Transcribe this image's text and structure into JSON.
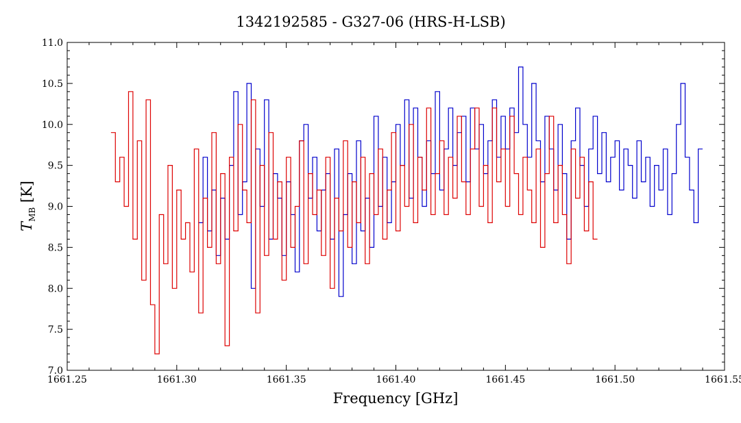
{
  "chart_data": {
    "type": "line",
    "title": "1342192585 - G327-06 (HRS-H-LSB)",
    "xlabel": "Frequency [GHz]",
    "ylabel_main": "T",
    "ylabel_sub": "MB",
    "ylabel_unit": "[K]",
    "xlim": [
      1661.25,
      1661.55
    ],
    "ylim": [
      7.0,
      11.0
    ],
    "xticks": [
      1661.25,
      1661.3,
      1661.35,
      1661.4,
      1661.45,
      1661.5,
      1661.55
    ],
    "xtick_labels": [
      "1661.25",
      "1661.30",
      "1661.35",
      "1661.40",
      "1661.45",
      "1661.50",
      "1661.55"
    ],
    "yticks": [
      7.0,
      7.5,
      8.0,
      8.5,
      9.0,
      9.5,
      10.0,
      10.5,
      11.0
    ],
    "ytick_labels": [
      "7.0",
      "7.5",
      "8.0",
      "8.5",
      "9.0",
      "9.5",
      "10.0",
      "10.5",
      "11.0"
    ],
    "grid": false,
    "series": [
      {
        "color": "#0000cc",
        "x": [
          1661.31,
          1661.312,
          1661.314,
          1661.316,
          1661.318,
          1661.32,
          1661.322,
          1661.324,
          1661.326,
          1661.328,
          1661.33,
          1661.332,
          1661.334,
          1661.336,
          1661.338,
          1661.34,
          1661.342,
          1661.344,
          1661.346,
          1661.348,
          1661.35,
          1661.352,
          1661.354,
          1661.356,
          1661.358,
          1661.36,
          1661.362,
          1661.364,
          1661.366,
          1661.368,
          1661.37,
          1661.372,
          1661.374,
          1661.376,
          1661.378,
          1661.38,
          1661.382,
          1661.384,
          1661.386,
          1661.388,
          1661.39,
          1661.392,
          1661.394,
          1661.396,
          1661.398,
          1661.4,
          1661.402,
          1661.404,
          1661.406,
          1661.408,
          1661.41,
          1661.412,
          1661.414,
          1661.416,
          1661.418,
          1661.42,
          1661.422,
          1661.424,
          1661.426,
          1661.428,
          1661.43,
          1661.432,
          1661.434,
          1661.436,
          1661.438,
          1661.44,
          1661.442,
          1661.444,
          1661.446,
          1661.448,
          1661.45,
          1661.452,
          1661.454,
          1661.456,
          1661.458,
          1661.46,
          1661.462,
          1661.464,
          1661.466,
          1661.468,
          1661.47,
          1661.472,
          1661.474,
          1661.476,
          1661.478,
          1661.48,
          1661.482,
          1661.484,
          1661.486,
          1661.488,
          1661.49,
          1661.492,
          1661.494,
          1661.496,
          1661.498,
          1661.5,
          1661.502,
          1661.504,
          1661.506,
          1661.508,
          1661.51,
          1661.512,
          1661.514,
          1661.516,
          1661.518,
          1661.52,
          1661.522,
          1661.524,
          1661.526,
          1661.528,
          1661.53,
          1661.532,
          1661.534,
          1661.536,
          1661.538
        ],
        "values": [
          8.8,
          9.6,
          8.7,
          9.2,
          8.4,
          9.1,
          8.6,
          9.5,
          10.4,
          8.9,
          9.3,
          10.5,
          8.0,
          9.7,
          9.0,
          10.3,
          8.6,
          9.4,
          9.1,
          8.4,
          9.3,
          8.9,
          8.2,
          9.8,
          10.0,
          9.1,
          9.6,
          8.7,
          9.2,
          9.4,
          8.6,
          9.7,
          7.9,
          8.9,
          9.4,
          8.3,
          9.8,
          8.7,
          9.1,
          8.5,
          10.1,
          9.0,
          9.6,
          8.8,
          9.3,
          10.0,
          9.5,
          10.3,
          9.1,
          10.2,
          9.6,
          9.0,
          9.8,
          9.4,
          10.4,
          9.2,
          9.7,
          10.2,
          9.5,
          9.9,
          10.1,
          9.3,
          10.2,
          9.7,
          10.0,
          9.4,
          9.8,
          10.3,
          9.6,
          10.1,
          9.7,
          10.2,
          9.9,
          10.7,
          10.0,
          9.6,
          10.5,
          9.8,
          9.3,
          10.1,
          9.7,
          9.2,
          10.0,
          9.4,
          8.6,
          9.8,
          10.2,
          9.5,
          9.0,
          9.7,
          10.1,
          9.4,
          9.9,
          9.3,
          9.6,
          9.8,
          9.2,
          9.7,
          9.5,
          9.1,
          9.8,
          9.3,
          9.6,
          9.0,
          9.5,
          9.2,
          9.7,
          8.9,
          9.4,
          10.0,
          10.5,
          9.6,
          9.2,
          8.8,
          9.7
        ]
      },
      {
        "color": "#dd0000",
        "x": [
          1661.27,
          1661.272,
          1661.274,
          1661.276,
          1661.278,
          1661.28,
          1661.282,
          1661.284,
          1661.286,
          1661.288,
          1661.29,
          1661.292,
          1661.294,
          1661.296,
          1661.298,
          1661.3,
          1661.302,
          1661.304,
          1661.306,
          1661.308,
          1661.31,
          1661.312,
          1661.314,
          1661.316,
          1661.318,
          1661.32,
          1661.322,
          1661.324,
          1661.326,
          1661.328,
          1661.33,
          1661.332,
          1661.334,
          1661.336,
          1661.338,
          1661.34,
          1661.342,
          1661.344,
          1661.346,
          1661.348,
          1661.35,
          1661.352,
          1661.354,
          1661.356,
          1661.358,
          1661.36,
          1661.362,
          1661.364,
          1661.366,
          1661.368,
          1661.37,
          1661.372,
          1661.374,
          1661.376,
          1661.378,
          1661.38,
          1661.382,
          1661.384,
          1661.386,
          1661.388,
          1661.39,
          1661.392,
          1661.394,
          1661.396,
          1661.398,
          1661.4,
          1661.402,
          1661.404,
          1661.406,
          1661.408,
          1661.41,
          1661.412,
          1661.414,
          1661.416,
          1661.418,
          1661.42,
          1661.422,
          1661.424,
          1661.426,
          1661.428,
          1661.43,
          1661.432,
          1661.434,
          1661.436,
          1661.438,
          1661.44,
          1661.442,
          1661.444,
          1661.446,
          1661.448,
          1661.45,
          1661.452,
          1661.454,
          1661.456,
          1661.458,
          1661.46,
          1661.462,
          1661.464,
          1661.466,
          1661.468,
          1661.47,
          1661.472,
          1661.474,
          1661.476,
          1661.478,
          1661.48,
          1661.482,
          1661.484,
          1661.486,
          1661.488,
          1661.49
        ],
        "values": [
          9.9,
          9.3,
          9.6,
          9.0,
          10.4,
          8.6,
          9.8,
          8.1,
          10.3,
          7.8,
          7.2,
          8.9,
          8.3,
          9.5,
          8.0,
          9.2,
          8.6,
          8.8,
          8.2,
          9.7,
          7.7,
          9.1,
          8.5,
          9.9,
          8.3,
          9.4,
          7.3,
          9.6,
          8.7,
          10.0,
          9.2,
          8.8,
          10.3,
          7.7,
          9.5,
          8.4,
          9.9,
          8.6,
          9.3,
          8.1,
          9.6,
          8.5,
          9.0,
          9.8,
          8.3,
          9.4,
          8.9,
          9.2,
          8.4,
          9.6,
          8.0,
          9.1,
          8.7,
          9.8,
          8.5,
          9.3,
          8.8,
          9.6,
          8.3,
          9.4,
          8.9,
          9.7,
          8.6,
          9.2,
          9.9,
          8.7,
          9.5,
          9.0,
          10.0,
          8.8,
          9.6,
          9.2,
          10.2,
          8.9,
          9.4,
          9.8,
          8.9,
          9.6,
          9.1,
          10.1,
          9.3,
          8.9,
          9.7,
          10.2,
          9.0,
          9.5,
          8.8,
          10.2,
          9.3,
          9.7,
          9.0,
          10.1,
          9.4,
          8.9,
          9.6,
          9.2,
          8.8,
          9.7,
          8.5,
          9.4,
          10.1,
          8.8,
          9.5,
          8.9,
          8.3,
          9.7,
          9.1,
          9.6,
          8.7,
          9.3,
          8.6
        ]
      }
    ]
  }
}
